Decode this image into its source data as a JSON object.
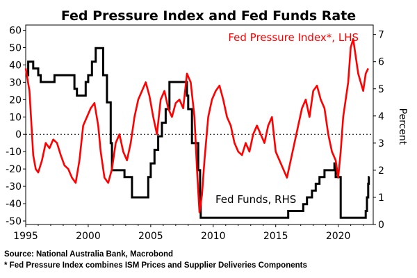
{
  "chart_data": {
    "type": "line",
    "title": "Fed Pressure Index and Fed Funds Rate",
    "ylabel_right": "Percent",
    "xlim": [
      1995,
      2022.8
    ],
    "ylim_left": [
      -52,
      63
    ],
    "ylim_right": [
      0,
      7.35
    ],
    "x_ticks": [
      1995,
      2000,
      2005,
      2010,
      2015,
      2020
    ],
    "y_ticks_left": [
      -50,
      -40,
      -30,
      -20,
      -10,
      0,
      10,
      20,
      30,
      40,
      50,
      60
    ],
    "y_ticks_right": [
      0,
      1,
      2,
      3,
      4,
      5,
      6,
      7
    ],
    "reference_line_left": 0,
    "colors": {
      "fed_pressure": "#ff0000",
      "fed_funds": "#000000",
      "zero_line": "#000000"
    },
    "series": [
      {
        "name": "Fed Pressure Index*, LHS",
        "axis": "left",
        "x": [
          1995.0,
          1995.3,
          1995.6,
          1995.8,
          1996.0,
          1996.3,
          1996.6,
          1996.9,
          1997.2,
          1997.5,
          1997.8,
          1998.1,
          1998.4,
          1998.7,
          1999.0,
          1999.3,
          1999.6,
          1999.9,
          2000.2,
          2000.5,
          2000.8,
          2001.0,
          2001.3,
          2001.6,
          2001.9,
          2002.2,
          2002.5,
          2002.8,
          2003.1,
          2003.4,
          2003.7,
          2004.0,
          2004.3,
          2004.6,
          2004.9,
          2005.2,
          2005.5,
          2005.8,
          2006.1,
          2006.4,
          2006.7,
          2007.0,
          2007.3,
          2007.6,
          2007.9,
          2008.2,
          2008.5,
          2008.7,
          2008.9,
          2009.1,
          2009.3,
          2009.6,
          2009.9,
          2010.2,
          2010.5,
          2010.8,
          2011.1,
          2011.4,
          2011.7,
          2012.0,
          2012.3,
          2012.6,
          2012.9,
          2013.2,
          2013.5,
          2013.8,
          2014.1,
          2014.4,
          2014.7,
          2015.0,
          2015.3,
          2015.6,
          2015.9,
          2016.2,
          2016.5,
          2016.8,
          2017.1,
          2017.4,
          2017.7,
          2018.0,
          2018.3,
          2018.6,
          2018.9,
          2019.2,
          2019.5,
          2019.8,
          2020.0,
          2020.2,
          2020.4,
          2020.6,
          2020.8,
          2021.0,
          2021.2,
          2021.4,
          2021.6,
          2021.8,
          2022.0,
          2022.2,
          2022.4
        ],
        "values": [
          38,
          25,
          -12,
          -20,
          -22,
          -15,
          -5,
          -8,
          -3,
          -5,
          -12,
          -18,
          -20,
          -25,
          -28,
          -15,
          5,
          10,
          15,
          18,
          5,
          -10,
          -25,
          -28,
          -20,
          -5,
          0,
          -10,
          -15,
          -5,
          10,
          20,
          25,
          30,
          22,
          10,
          0,
          20,
          25,
          15,
          10,
          18,
          20,
          15,
          35,
          30,
          10,
          -20,
          -45,
          -35,
          -15,
          10,
          20,
          25,
          28,
          20,
          10,
          5,
          -5,
          -10,
          -12,
          -5,
          -10,
          0,
          5,
          0,
          -5,
          5,
          10,
          -10,
          -15,
          -20,
          -25,
          -15,
          -5,
          5,
          15,
          20,
          10,
          25,
          28,
          20,
          15,
          0,
          -10,
          -15,
          -25,
          -10,
          10,
          20,
          30,
          50,
          55,
          45,
          35,
          30,
          25,
          35,
          38
        ]
      },
      {
        "name": "Fed Funds, RHS",
        "axis": "right",
        "x": [
          1995.0,
          1995.2,
          1995.6,
          1996.0,
          1996.2,
          1997.2,
          1997.3,
          1998.7,
          1998.9,
          1999.1,
          1999.5,
          1999.8,
          2000.0,
          2000.3,
          2000.6,
          2001.0,
          2001.2,
          2001.5,
          2001.8,
          2001.9,
          2002.9,
          2003.5,
          2004.5,
          2004.8,
          2005.0,
          2005.3,
          2005.6,
          2005.9,
          2006.2,
          2006.5,
          2007.7,
          2007.9,
          2008.0,
          2008.3,
          2008.8,
          2008.95,
          2009.0,
          2015.9,
          2016.0,
          2016.9,
          2017.2,
          2017.5,
          2017.9,
          2018.2,
          2018.5,
          2018.9,
          2019.6,
          2019.7,
          2019.8,
          2020.15,
          2020.2,
          2022.0,
          2022.2,
          2022.3,
          2022.4,
          2022.45,
          2022.5
        ],
        "values": [
          5.5,
          6.0,
          5.75,
          5.5,
          5.25,
          5.25,
          5.5,
          5.5,
          5.0,
          4.75,
          4.75,
          5.25,
          5.5,
          6.0,
          6.5,
          6.5,
          5.5,
          4.5,
          3.0,
          2.0,
          1.75,
          1.0,
          1.0,
          1.75,
          2.25,
          2.75,
          3.25,
          3.75,
          4.25,
          5.25,
          5.25,
          4.75,
          4.25,
          3.0,
          2.0,
          1.0,
          0.25,
          0.25,
          0.5,
          0.5,
          0.75,
          1.0,
          1.25,
          1.5,
          1.75,
          2.0,
          2.0,
          2.25,
          1.75,
          1.75,
          0.25,
          0.25,
          0.5,
          1.0,
          1.5,
          1.75,
          1.75
        ]
      }
    ],
    "notes": [
      "Source: National Australia Bank, Macrobond",
      "* Fed Pressure Index combines ISM Prices and Supplier Deliveries Components"
    ]
  }
}
